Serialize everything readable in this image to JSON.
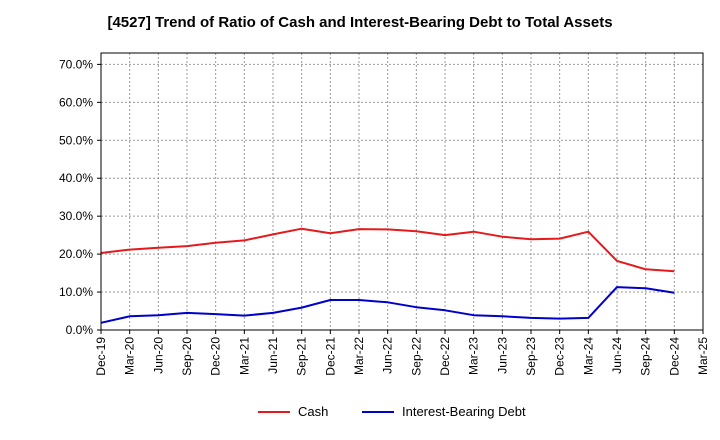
{
  "chart_data": {
    "type": "line",
    "title": "[4527]  Trend of Ratio of Cash and Interest-Bearing Debt to Total Assets",
    "xlabel": "",
    "ylabel": "",
    "x": [
      "Dec-19",
      "Mar-20",
      "Jun-20",
      "Sep-20",
      "Dec-20",
      "Mar-21",
      "Jun-21",
      "Sep-21",
      "Dec-21",
      "Mar-22",
      "Jun-22",
      "Sep-22",
      "Dec-22",
      "Mar-23",
      "Jun-23",
      "Sep-23",
      "Dec-23",
      "Mar-24",
      "Jun-24",
      "Sep-24",
      "Dec-24",
      "Mar-25"
    ],
    "y_ticks": [
      "0.0%",
      "10.0%",
      "20.0%",
      "30.0%",
      "40.0%",
      "50.0%",
      "60.0%",
      "70.0%"
    ],
    "ylim": [
      0,
      73
    ],
    "grid": true,
    "legend_position": "bottom",
    "series": [
      {
        "name": "Cash",
        "color": "#e41a1c",
        "values": [
          20.3,
          21.2,
          21.7,
          22.1,
          23.0,
          23.6,
          25.2,
          26.7,
          25.5,
          26.6,
          26.5,
          26.0,
          25.0,
          25.9,
          24.6,
          23.9,
          24.1,
          25.9,
          18.2,
          16.0,
          15.5,
          null
        ]
      },
      {
        "name": "Interest-Bearing Debt",
        "color": "#0000cc",
        "values": [
          1.9,
          3.6,
          3.9,
          4.5,
          4.2,
          3.8,
          4.5,
          5.9,
          7.9,
          7.9,
          7.3,
          6.0,
          5.2,
          3.9,
          3.6,
          3.2,
          3.0,
          3.2,
          11.3,
          11.0,
          9.8,
          null
        ]
      }
    ]
  }
}
